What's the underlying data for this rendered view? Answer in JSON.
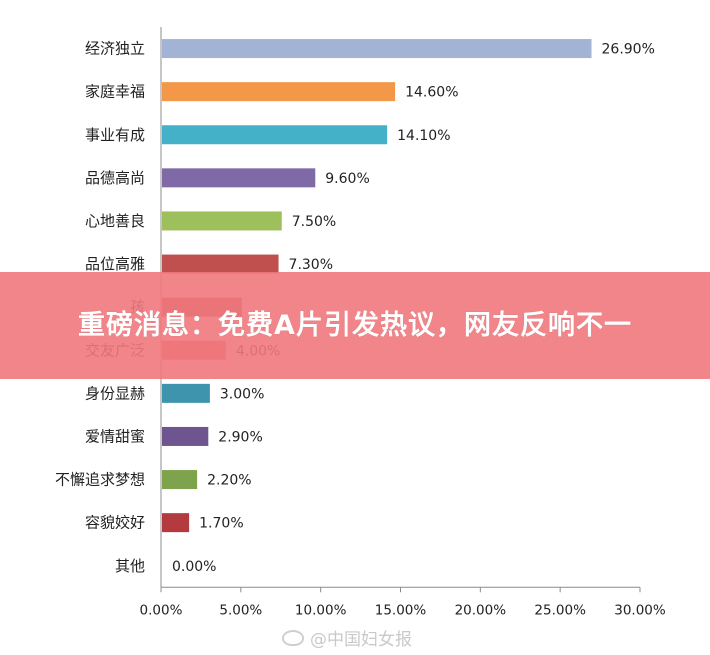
{
  "chart_data": {
    "type": "bar",
    "orientation": "horizontal",
    "categories": [
      "经济独立",
      "家庭幸福",
      "事业有成",
      "品德高尚",
      "心地善良",
      "品位高雅",
      "孩",
      "交友广泛",
      "身份显赫",
      "爱情甜蜜",
      "不懈追求梦想",
      "容貌姣好",
      "其他"
    ],
    "values": [
      26.9,
      14.6,
      14.1,
      9.6,
      7.5,
      7.3,
      5.0,
      4.0,
      3.0,
      2.9,
      2.2,
      1.7,
      0.0
    ],
    "value_labels": [
      "26.90%",
      "14.60%",
      "14.10%",
      "9.60%",
      "7.50%",
      "7.30%",
      "",
      "4.00%",
      "3.00%",
      "2.90%",
      "2.20%",
      "1.70%",
      "0.00%"
    ],
    "colors": [
      "#a3b3d6",
      "#f39748",
      "#44b1c9",
      "#8069a7",
      "#9dbf5c",
      "#c0504d",
      "#c0504d",
      "#ec6a5a",
      "#3e94ad",
      "#6f558f",
      "#7fa34c",
      "#b53a3f",
      "#999999"
    ],
    "xlim": [
      0,
      30
    ],
    "xticks": [
      0,
      5,
      10,
      15,
      20,
      25,
      30
    ],
    "xtick_labels": [
      "0.00%",
      "5.00%",
      "10.00%",
      "15.00%",
      "20.00%",
      "25.00%",
      "30.00%"
    ],
    "grid": false,
    "legend": "none"
  },
  "overlay": {
    "headline": "重磅消息：免费A片引发热议，网友反响不一"
  },
  "watermark": {
    "text": "@中国妇女报"
  },
  "colors": {
    "banner": "#f0787d",
    "axis": "#8c8c8c"
  }
}
